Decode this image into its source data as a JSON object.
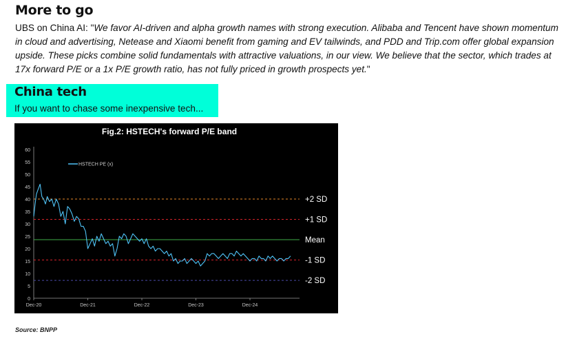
{
  "section1": {
    "heading": "More to go",
    "lead": "UBS on China AI: \"",
    "quote": "We favor AI-driven and alpha growth names with strong execution. Alibaba and Tencent have shown momentum in cloud and advertising, Netease and Xiaomi benefit from gaming and EV tailwinds, and PDD and Trip.com offer global expansion upside. These picks combine solid fundamentals with attractive valuations, in our view. We believe that the sector, which trades at 17x forward P/E or a 1x P/E growth ratio, has not fully priced in growth prospects yet.",
    "tail": "\""
  },
  "section2": {
    "heading": "China tech",
    "subheading": "If you want to chase some inexpensive tech..."
  },
  "source": "Source: BNPP",
  "colors": {
    "banner": "#00ffd9",
    "chart_bg": "#000000",
    "series": "#4fc3f7",
    "plus2sd": "#e8872a",
    "plus1sd": "#d9232a",
    "mean": "#3fae49",
    "minus1sd": "#d9232a",
    "minus2sd": "#4a4aa8"
  },
  "chart_data": {
    "type": "line",
    "title": "Fig.2: HSTECH's forward P/E band",
    "ylim": [
      0,
      60
    ],
    "yticks": [
      0,
      5,
      10,
      15,
      20,
      25,
      30,
      35,
      40,
      45,
      50,
      55,
      60
    ],
    "x_tick_labels": [
      "Dec-20",
      "Dec-21",
      "Dec-22",
      "Dec-23",
      "Dec-24"
    ],
    "x_tick_months": [
      0,
      12,
      24,
      36,
      48
    ],
    "legend": {
      "label": "HSTECH PE (x)",
      "position": "top-left"
    },
    "bands": [
      {
        "label": "+2 SD",
        "value": 40
      },
      {
        "label": "+1 SD",
        "value": 31.8
      },
      {
        "label": "Mean",
        "value": 23.6
      },
      {
        "label": "-1 SD",
        "value": 15.4
      },
      {
        "label": "-2 SD",
        "value": 7.2
      }
    ],
    "series": [
      {
        "name": "HSTECH PE (x)",
        "x_months": [
          0,
          0.3,
          0.6,
          1,
          1.4,
          1.8,
          2.2,
          2.6,
          3,
          3.5,
          4,
          4.5,
          5,
          5.5,
          6,
          6.5,
          7,
          7.5,
          8,
          8.5,
          9,
          9.5,
          10,
          10.5,
          11,
          11.5,
          12,
          12.5,
          13,
          13.5,
          14,
          14.5,
          15,
          15.5,
          16,
          16.5,
          17,
          17.5,
          18,
          18.5,
          19,
          19.5,
          20,
          20.5,
          21,
          21.5,
          22,
          22.5,
          23,
          23.5,
          24,
          24.5,
          25,
          25.5,
          26,
          26.5,
          27,
          27.5,
          28,
          28.5,
          29,
          29.5,
          30,
          30.5,
          31,
          31.5,
          32,
          32.5,
          33,
          33.5,
          34,
          34.5,
          35,
          35.5,
          36,
          36.5,
          37,
          37.5,
          38,
          38.5,
          39,
          39.5,
          40,
          40.5,
          41,
          41.5,
          42,
          42.5,
          43,
          43.5,
          44,
          44.5,
          45,
          45.5,
          46,
          46.5,
          47,
          47.5,
          48,
          48.5,
          49,
          49.5,
          50,
          50.5,
          51,
          51.5,
          52,
          52.5,
          53,
          53.5,
          54,
          54.5,
          55,
          55.5,
          56,
          56.5,
          57
        ],
        "values": [
          33,
          38,
          42,
          44,
          46,
          41,
          40,
          38,
          41,
          39,
          40,
          37,
          40,
          38,
          33,
          35,
          30,
          37,
          36,
          34,
          31,
          33,
          32,
          29,
          29,
          27,
          20,
          22,
          24,
          21,
          25,
          23,
          26,
          24,
          22,
          23,
          21,
          22,
          17,
          20,
          25,
          24,
          26,
          25,
          22,
          24,
          26,
          25,
          24,
          23,
          24,
          22,
          24,
          21,
          20,
          21,
          19,
          20,
          20,
          19,
          18,
          19,
          17,
          18,
          15,
          16,
          14,
          15,
          15,
          16,
          14,
          15,
          16,
          15,
          14,
          15,
          13,
          14,
          15,
          18,
          17,
          18,
          18,
          17,
          16,
          17,
          18,
          17,
          16,
          18,
          18,
          17,
          19,
          18,
          17,
          18,
          17,
          16,
          15,
          16,
          16,
          15,
          17,
          16,
          16,
          15,
          17,
          16,
          17,
          16,
          15,
          16,
          16,
          15,
          16,
          16,
          17
        ]
      }
    ]
  }
}
